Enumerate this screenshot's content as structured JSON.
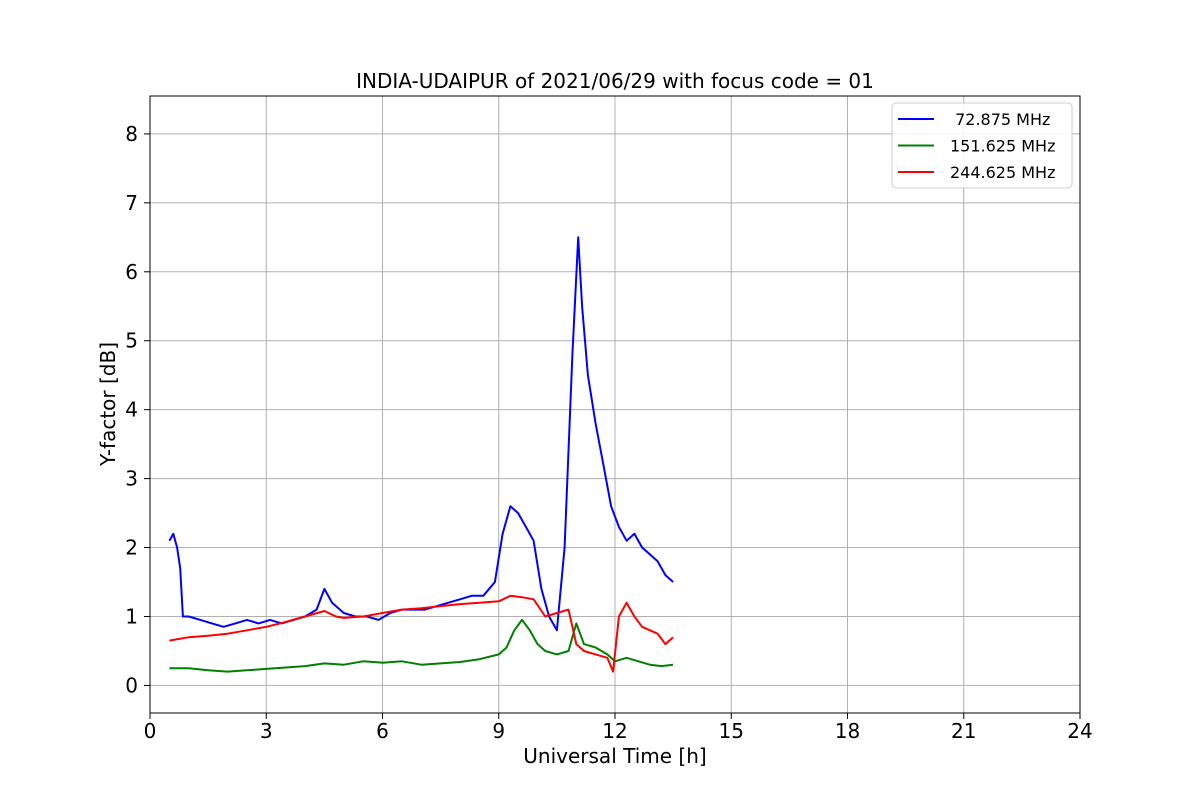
{
  "chart_data": {
    "type": "line",
    "title": "INDIA-UDAIPUR of 2021/06/29 with focus code = 01",
    "xlabel": "Universal Time [h]",
    "ylabel": "Y-factor [dB]",
    "xlim": [
      0,
      24
    ],
    "ylim": [
      -0.4,
      8.55
    ],
    "xticks": [
      0,
      3,
      6,
      9,
      12,
      15,
      18,
      21,
      24
    ],
    "yticks": [
      0,
      1,
      2,
      3,
      4,
      5,
      6,
      7,
      8
    ],
    "grid": true,
    "legend_position": "upper right",
    "series": [
      {
        "name": " 72.875 MHz",
        "color": "#0000ff",
        "x": [
          0.5,
          0.6,
          0.7,
          0.78,
          0.85,
          1.0,
          1.3,
          1.6,
          1.9,
          2.2,
          2.5,
          2.8,
          3.1,
          3.4,
          3.7,
          4.0,
          4.3,
          4.5,
          4.7,
          5.0,
          5.3,
          5.6,
          5.9,
          6.2,
          6.5,
          6.8,
          7.1,
          7.4,
          7.7,
          8.0,
          8.3,
          8.6,
          8.9,
          9.1,
          9.3,
          9.5,
          9.7,
          9.9,
          10.1,
          10.3,
          10.5,
          10.7,
          10.9,
          11.05,
          11.15,
          11.3,
          11.5,
          11.7,
          11.9,
          12.1,
          12.3,
          12.5,
          12.7,
          12.9,
          13.1,
          13.3,
          13.5
        ],
        "y": [
          2.1,
          2.2,
          2.0,
          1.7,
          1.0,
          1.0,
          0.95,
          0.9,
          0.85,
          0.9,
          0.95,
          0.9,
          0.95,
          0.9,
          0.95,
          1.0,
          1.1,
          1.4,
          1.2,
          1.05,
          1.0,
          1.0,
          0.95,
          1.05,
          1.1,
          1.1,
          1.1,
          1.15,
          1.2,
          1.25,
          1.3,
          1.3,
          1.5,
          2.2,
          2.6,
          2.5,
          2.3,
          2.1,
          1.4,
          1.0,
          0.8,
          2.0,
          4.8,
          6.5,
          5.5,
          4.5,
          3.8,
          3.2,
          2.6,
          2.3,
          2.1,
          2.2,
          2.0,
          1.9,
          1.8,
          1.6,
          1.5
        ]
      },
      {
        "name": "151.625 MHz",
        "color": "#008000",
        "x": [
          0.5,
          1.0,
          1.5,
          2.0,
          2.5,
          3.0,
          3.5,
          4.0,
          4.5,
          5.0,
          5.5,
          6.0,
          6.5,
          7.0,
          7.5,
          8.0,
          8.5,
          9.0,
          9.2,
          9.4,
          9.6,
          9.8,
          10.0,
          10.2,
          10.5,
          10.8,
          11.0,
          11.2,
          11.5,
          11.8,
          12.0,
          12.3,
          12.6,
          12.9,
          13.2,
          13.5
        ],
        "y": [
          0.25,
          0.25,
          0.22,
          0.2,
          0.22,
          0.24,
          0.26,
          0.28,
          0.32,
          0.3,
          0.35,
          0.33,
          0.35,
          0.3,
          0.32,
          0.34,
          0.38,
          0.45,
          0.55,
          0.8,
          0.95,
          0.8,
          0.6,
          0.5,
          0.45,
          0.5,
          0.9,
          0.6,
          0.55,
          0.45,
          0.35,
          0.4,
          0.35,
          0.3,
          0.28,
          0.3
        ]
      },
      {
        "name": "244.625 MHz",
        "color": "#ff0000",
        "x": [
          0.5,
          1.0,
          1.5,
          2.0,
          2.5,
          3.0,
          3.5,
          4.0,
          4.5,
          4.8,
          5.0,
          5.5,
          6.0,
          6.5,
          7.0,
          7.5,
          8.0,
          8.5,
          9.0,
          9.3,
          9.6,
          9.9,
          10.2,
          10.5,
          10.8,
          11.0,
          11.2,
          11.5,
          11.8,
          11.95,
          12.1,
          12.3,
          12.5,
          12.7,
          12.9,
          13.1,
          13.3,
          13.5
        ],
        "y": [
          0.65,
          0.7,
          0.72,
          0.75,
          0.8,
          0.85,
          0.92,
          1.0,
          1.08,
          1.0,
          0.98,
          1.0,
          1.05,
          1.1,
          1.12,
          1.15,
          1.18,
          1.2,
          1.22,
          1.3,
          1.28,
          1.25,
          1.0,
          1.05,
          1.1,
          0.6,
          0.5,
          0.45,
          0.4,
          0.2,
          1.0,
          1.2,
          1.0,
          0.85,
          0.8,
          0.75,
          0.6,
          0.7
        ]
      }
    ]
  }
}
